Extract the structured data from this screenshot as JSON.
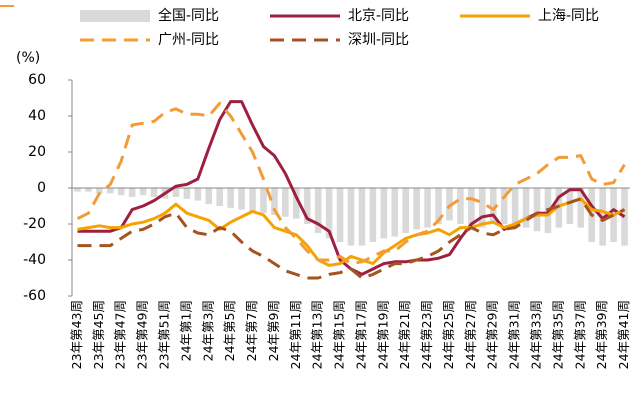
{
  "chart_data": {
    "type": "line",
    "unit_label": "(%)",
    "categories": [
      "23年第43周",
      null,
      "23年第45周",
      null,
      "23年第47周",
      null,
      "23年第49周",
      null,
      "23年第51周",
      null,
      "24年第1周",
      null,
      "24年第3周",
      null,
      "24年第5周",
      null,
      "24年第7周",
      null,
      "24年第9周",
      null,
      "24年第11周",
      null,
      "24年第13周",
      null,
      "24年第15周",
      null,
      "24年第17周",
      null,
      "24年第19周",
      null,
      "24年第21周",
      null,
      "24年第23周",
      null,
      "24年第25周",
      null,
      "24年第27周",
      null,
      "24年第29周",
      null,
      "24年第31周",
      null,
      "24年第33周",
      null,
      "24年第35周",
      null,
      "24年第37周",
      null,
      "24年第39周",
      null,
      "24年第41周"
    ],
    "series": [
      {
        "name": "全国-同比",
        "type": "bar",
        "color": "#d9d9d9",
        "values": [
          -2,
          -2,
          -3,
          -3,
          -4,
          -5,
          -4,
          -5,
          -6,
          -5,
          -6,
          -7,
          -9,
          -10,
          -11,
          -12,
          -13,
          -14,
          -15,
          -16,
          -17,
          -20,
          -25,
          -28,
          -30,
          -32,
          -32,
          -30,
          -28,
          -27,
          -25,
          -23,
          -22,
          -20,
          -18,
          -20,
          -22,
          -22,
          -20,
          -20,
          -20,
          -22,
          -24,
          -25,
          -22,
          -20,
          -22,
          -30,
          -32,
          -30,
          -32
        ]
      },
      {
        "name": "北京-同比",
        "type": "line",
        "color": "#9e1f3f",
        "dashed": false,
        "values": [
          -24,
          -24,
          -24,
          -24,
          -22,
          -12,
          -10,
          -7,
          -3,
          1,
          2,
          5,
          22,
          38,
          48,
          48,
          35,
          23,
          18,
          8,
          -5,
          -17,
          -20,
          -24,
          -40,
          -45,
          -48,
          -45,
          -42,
          -41,
          -41,
          -40,
          -40,
          -39,
          -37,
          -28,
          -20,
          -16,
          -15,
          -23,
          -20,
          -17,
          -14,
          -14,
          -5,
          -1,
          -1,
          -10,
          -17,
          -12,
          -16
        ]
      },
      {
        "name": "上海-同比",
        "type": "line",
        "color": "#f5a300",
        "dashed": false,
        "values": [
          -23,
          -22,
          -21,
          -22,
          -22,
          -20,
          -19,
          -17,
          -14,
          -9,
          -14,
          -16,
          -18,
          -23,
          -19,
          -16,
          -13,
          -15,
          -22,
          -24,
          -26,
          -32,
          -40,
          -43,
          -42,
          -38,
          -40,
          -42,
          -36,
          -32,
          -28,
          -26,
          -25,
          -23,
          -26,
          -22,
          -22,
          -20,
          -19,
          -22,
          -20,
          -17,
          -15,
          -15,
          -10,
          -8,
          -6,
          -12,
          -13,
          -15,
          -12
        ]
      },
      {
        "name": "广州-同比",
        "type": "line",
        "color": "#f39c36",
        "dashed": true,
        "values": [
          -17,
          -14,
          -3,
          2,
          15,
          35,
          36,
          37,
          42,
          44,
          41,
          41,
          40,
          47,
          40,
          30,
          20,
          5,
          -12,
          -22,
          -28,
          -35,
          -40,
          -40,
          -38,
          -42,
          -41,
          -38,
          -35,
          -35,
          -30,
          -26,
          -24,
          -18,
          -10,
          -6,
          -6,
          -8,
          -12,
          -5,
          2,
          5,
          8,
          13,
          17,
          17,
          18,
          5,
          2,
          3,
          13
        ]
      },
      {
        "name": "深圳-同比",
        "type": "line",
        "color": "#a5531f",
        "dashed": true,
        "values": [
          -32,
          -32,
          -32,
          -32,
          -28,
          -24,
          -23,
          -20,
          -16,
          -14,
          -22,
          -25,
          -26,
          -22,
          -24,
          -30,
          -35,
          -38,
          -42,
          -46,
          -48,
          -50,
          -50,
          -48,
          -47,
          -45,
          -50,
          -48,
          -45,
          -42,
          -42,
          -40,
          -38,
          -35,
          -30,
          -26,
          -22,
          -25,
          -26,
          -23,
          -22,
          -18,
          -14,
          -12,
          -10,
          -8,
          -6,
          -15,
          -18,
          -15,
          -12
        ]
      }
    ],
    "ylim": [
      -60,
      60
    ],
    "yticks": [
      -60,
      -40,
      -20,
      0,
      20,
      40,
      60
    ]
  }
}
